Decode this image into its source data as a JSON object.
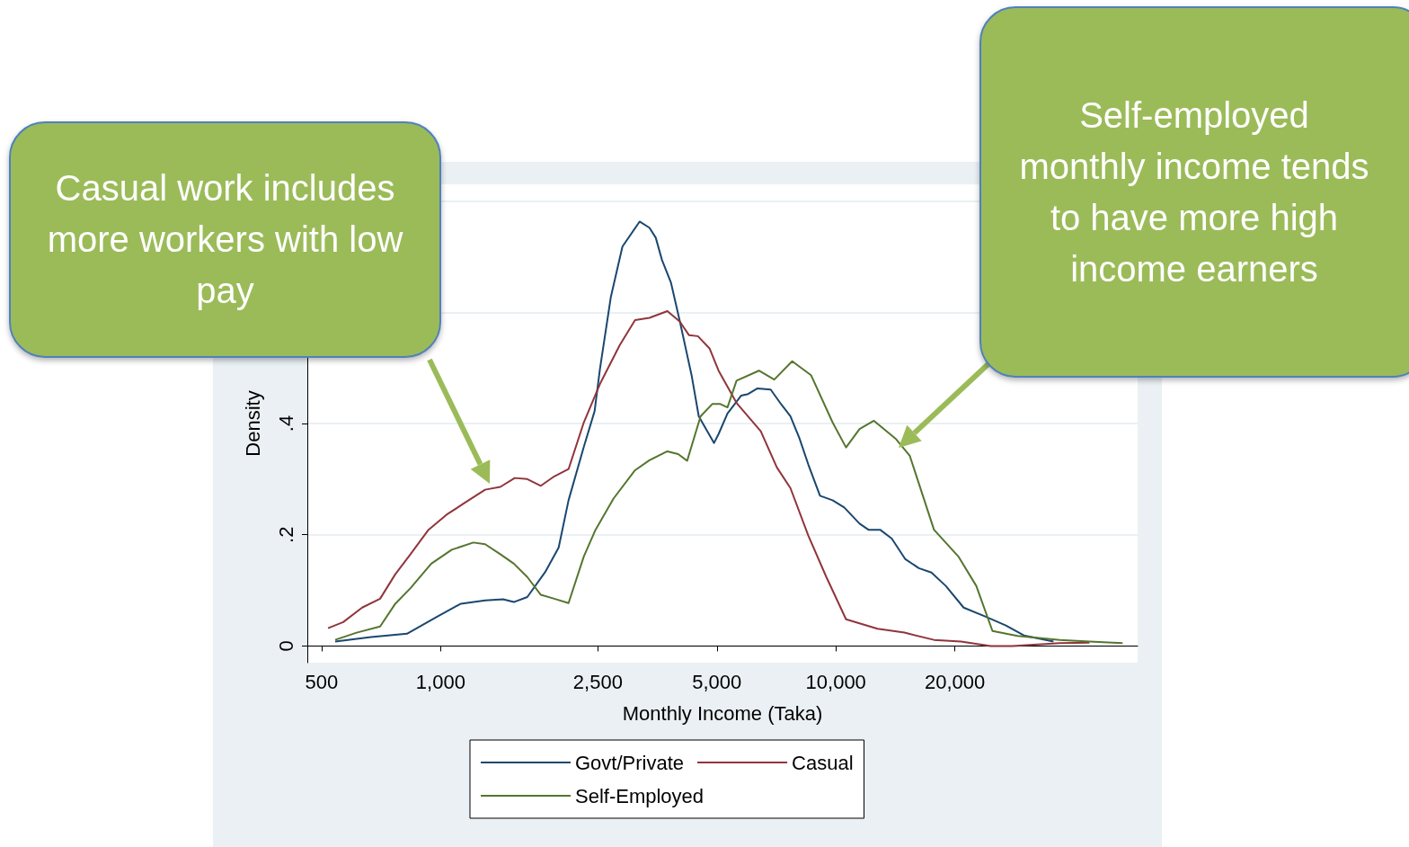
{
  "chart_data": {
    "type": "line",
    "xlabel": "Monthly Income (Taka)",
    "ylabel": "Density",
    "annotations": [
      "Casual work includes more workers with low pay",
      "Self-employed monthly income tends to have more high income earners"
    ],
    "series": [
      {
        "name": "Govt/Private",
        "color": "#1a476f",
        "x": [
          541,
          667,
          822,
          982,
          1125,
          1296,
          1439,
          1532,
          1657,
          1839,
          1989,
          2107,
          2303,
          2452,
          2530,
          2695,
          2884,
          3187,
          3375,
          3502,
          3631,
          3827,
          4031,
          4314,
          4499,
          4918,
          5049,
          5318,
          5756,
          6000,
          6321,
          6840,
          7281,
          7673,
          8083,
          8520,
          9118,
          9810,
          10500,
          11480,
          12090,
          12940,
          13850,
          14990,
          16210,
          17450,
          18970,
          21050,
          23870,
          26920,
          29900,
          35530
        ],
        "values": [
          0.008,
          0.016,
          0.022,
          0.053,
          0.076,
          0.082,
          0.084,
          0.079,
          0.088,
          0.133,
          0.177,
          0.262,
          0.358,
          0.422,
          0.498,
          0.627,
          0.718,
          0.763,
          0.752,
          0.734,
          0.694,
          0.653,
          0.583,
          0.487,
          0.413,
          0.365,
          0.381,
          0.418,
          0.45,
          0.453,
          0.463,
          0.461,
          0.434,
          0.413,
          0.374,
          0.326,
          0.27,
          0.262,
          0.249,
          0.22,
          0.209,
          0.209,
          0.193,
          0.156,
          0.14,
          0.132,
          0.108,
          0.069,
          0.053,
          0.037,
          0.019,
          0.008
        ]
      },
      {
        "name": "Casual",
        "color": "#90353b",
        "x": [
          519,
          567,
          633,
          703,
          768,
          839,
          932,
          1035,
          1149,
          1296,
          1416,
          1540,
          1657,
          1793,
          1939,
          2107,
          2303,
          2530,
          2840,
          3104,
          3375,
          3747,
          4031,
          4248,
          4476,
          4790,
          5049,
          5606,
          6457,
          7092,
          7673,
          8520,
          9460,
          10610,
          12740,
          14910,
          17710,
          20740,
          24640,
          27930,
          36860,
          43800
        ],
        "values": [
          0.032,
          0.043,
          0.069,
          0.085,
          0.129,
          0.165,
          0.209,
          0.236,
          0.257,
          0.281,
          0.286,
          0.302,
          0.3,
          0.288,
          0.305,
          0.318,
          0.402,
          0.471,
          0.541,
          0.586,
          0.59,
          0.602,
          0.583,
          0.559,
          0.557,
          0.535,
          0.495,
          0.437,
          0.386,
          0.321,
          0.284,
          0.198,
          0.124,
          0.048,
          0.031,
          0.024,
          0.011,
          0.008,
          0,
          0,
          0.005,
          0.006
        ]
      },
      {
        "name": "Self-Employed",
        "color": "#55752f",
        "x": [
          541,
          613,
          703,
          768,
          839,
          947,
          1067,
          1210,
          1296,
          1416,
          1532,
          1657,
          1793,
          1939,
          2107,
          2303,
          2466,
          2738,
          3104,
          3375,
          3747,
          3990,
          4205,
          4547,
          4867,
          5102,
          5318,
          5606,
          6387,
          6984,
          7754,
          8651,
          9810,
          10610,
          11480,
          12480,
          14150,
          15380,
          17710,
          20410,
          22660,
          24900,
          28820,
          36860,
          43800,
          53150
        ],
        "values": [
          0.011,
          0.024,
          0.035,
          0.076,
          0.104,
          0.148,
          0.173,
          0.186,
          0.183,
          0.165,
          0.148,
          0.124,
          0.092,
          0.085,
          0.077,
          0.161,
          0.209,
          0.265,
          0.316,
          0.334,
          0.35,
          0.345,
          0.333,
          0.413,
          0.435,
          0.435,
          0.429,
          0.477,
          0.495,
          0.479,
          0.512,
          0.487,
          0.402,
          0.357,
          0.39,
          0.405,
          0.373,
          0.342,
          0.209,
          0.161,
          0.108,
          0.027,
          0.018,
          0.011,
          0.008,
          0.005
        ]
      }
    ],
    "xlim": [
      460,
      58000
    ],
    "ylim": [
      -0.03,
      0.83
    ],
    "xticks": [
      500,
      {
        "value": 1000,
        "label": "1,000"
      },
      {
        "value": 2500,
        "label": "2,500"
      },
      {
        "value": 5000,
        "label": "5,000"
      },
      {
        "value": 10000,
        "label": "10,000"
      },
      {
        "value": 20000,
        "label": "20,000"
      }
    ],
    "yticks": [
      0,
      {
        "value": 0.2,
        "label": ".2"
      },
      {
        "value": 0.4,
        "label": ".4"
      },
      {
        "value": 0.6,
        "label": null
      },
      {
        "value": 0.8,
        "label": null
      }
    ],
    "log": "x",
    "grid": "y",
    "legend": "bottom"
  }
}
